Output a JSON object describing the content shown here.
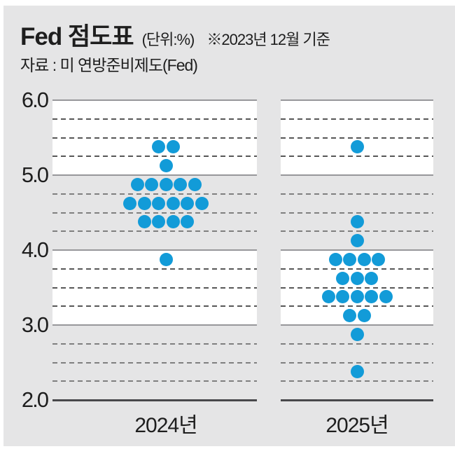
{
  "header": {
    "title": "Fed 점도표",
    "unit_note": "(단위:%)",
    "date_note": "※2023년 12월 기준",
    "source": "자료 : 미 연방준비제도(Fed)"
  },
  "colors": {
    "dot_blue": "#129bd8",
    "card_background": "#e5e5e6",
    "band_white": "#ffffff",
    "solid_gridline": "#97979a",
    "dashed_gridline": "#575757",
    "bottom_axis": "#48484b",
    "text": "#1e1e1e"
  },
  "chart_data": {
    "type": "scatter",
    "variant": "fed-dot-plot",
    "title": "Fed 점도표",
    "unit": "%",
    "as_of": "2023년 12월 기준",
    "ylim": [
      2.0,
      6.0
    ],
    "y_ticks": [
      "6.0",
      "5.0",
      "4.0",
      "3.0",
      "2.0"
    ],
    "grid": {
      "solid_at": [
        6.0,
        5.0,
        4.0,
        3.0,
        2.0
      ],
      "dashed_step": 0.25,
      "white_bands": [
        [
          6.0,
          5.0
        ],
        [
          4.0,
          3.0
        ]
      ]
    },
    "panels": [
      {
        "label": "2024년",
        "total_dots": 19,
        "distribution": [
          {
            "rate": 5.375,
            "count": 2
          },
          {
            "rate": 5.125,
            "count": 1
          },
          {
            "rate": 4.875,
            "count": 5
          },
          {
            "rate": 4.625,
            "count": 6
          },
          {
            "rate": 4.375,
            "count": 4
          },
          {
            "rate": 3.875,
            "count": 1
          }
        ]
      },
      {
        "label": "2025년",
        "total_dots": 19,
        "distribution": [
          {
            "rate": 5.375,
            "count": 1
          },
          {
            "rate": 4.375,
            "count": 1
          },
          {
            "rate": 4.125,
            "count": 1
          },
          {
            "rate": 3.875,
            "count": 4
          },
          {
            "rate": 3.625,
            "count": 3
          },
          {
            "rate": 3.375,
            "count": 5
          },
          {
            "rate": 3.125,
            "count": 2
          },
          {
            "rate": 2.875,
            "count": 1
          },
          {
            "rate": 2.375,
            "count": 1
          }
        ]
      }
    ]
  }
}
